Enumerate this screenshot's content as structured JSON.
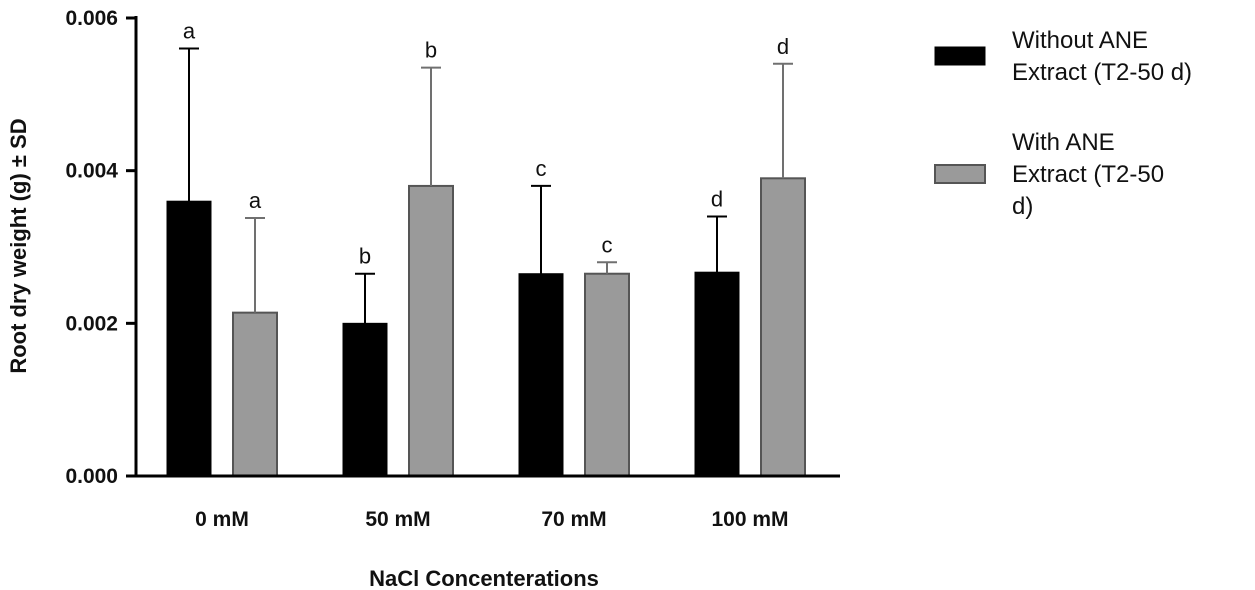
{
  "chart_data": {
    "type": "bar",
    "title": "",
    "xlabel": "NaCl Concenterations",
    "ylabel": "Root dry weight (g) ± SD",
    "ylim": [
      0,
      0.006
    ],
    "yticks": [
      "0.000",
      "0.002",
      "0.004",
      "0.006"
    ],
    "categories": [
      "0 mM",
      "50 mM",
      "70 mM",
      "100 mM"
    ],
    "series": [
      {
        "name": "Without ANE Extract (T2-50 d)",
        "legend_lines": [
          "Without ANE",
          "Extract (T2-50 d)"
        ],
        "color": "#000000",
        "values": [
          0.0036,
          0.002,
          0.00265,
          0.00267
        ],
        "sd": [
          0.002,
          0.00065,
          0.00115,
          0.00073
        ],
        "labels": [
          "a",
          "b",
          "c",
          "d"
        ]
      },
      {
        "name": "With ANE Extract (T2-50 d)",
        "legend_lines": [
          "With ANE",
          "Extract (T2-50",
          "d)"
        ],
        "color": "#9a9a9a",
        "values": [
          0.00214,
          0.0038,
          0.00265,
          0.0039
        ],
        "sd": [
          0.00124,
          0.00155,
          0.00015,
          0.0015
        ],
        "labels": [
          "a",
          "b",
          "c",
          "d"
        ]
      }
    ],
    "grid": false,
    "legend_position": "right"
  }
}
